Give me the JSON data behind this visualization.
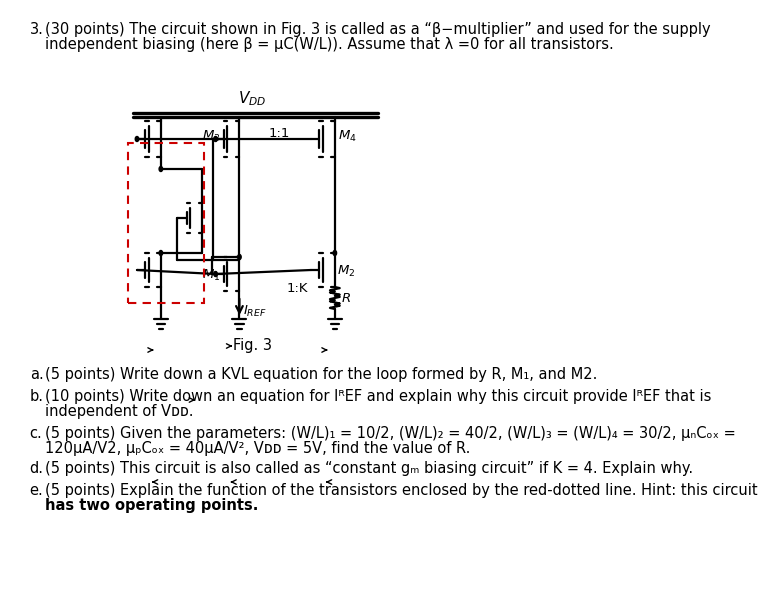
{
  "bg": "#ffffff",
  "text_color": "#000000",
  "fs": 10.5,
  "header_line1": "(30 points) The circuit shown in Fig. 3 is called as a “β−multiplier” and used for the supply",
  "header_line2": "independent biasing (here β = μC(W/L)). Assume that λ =0 for all transistors.",
  "fig_label": "Fig. 3",
  "vdd_label": "$V_{DD}$",
  "ratio_11": "1:1",
  "ratio_1k": "1:K",
  "iref_label": "$I_{REF}$",
  "R_label": "$R$",
  "M1_label": "$M_1$",
  "M2_label": "$M_2$",
  "M3_label": "$M_3$",
  "M4_label": "$M_4$",
  "qa": "(5 points) Write down a KVL equation for the loop formed by R, M₁, and M2.",
  "qb1": "(10 points) Write down an equation for IᴿEF and explain why this circuit provide IᴿEF that is",
  "qb2": "independent of Vᴅᴅ.",
  "qc1": "(5 points) Given the parameters: (W/L)₁ = 10/2, (W/L)₂ = 40/2, (W/L)₃ = (W/L)₄ = 30/2, μₙCₒₓ =",
  "qc2": "120μA/V2, μₚCₒₓ = 40μA/V², Vᴅᴅ = 5V, find the value of R.",
  "qd": "(5 points) This circuit is also called as “constant gₘ biasing circuit” if K = 4. Explain why.",
  "qe1": "(5 points) Explain the function of the transistors enclosed by the red-dotted line. Hint: this circuit",
  "qe2": "has two operating points.",
  "red_box": "#cc0000"
}
